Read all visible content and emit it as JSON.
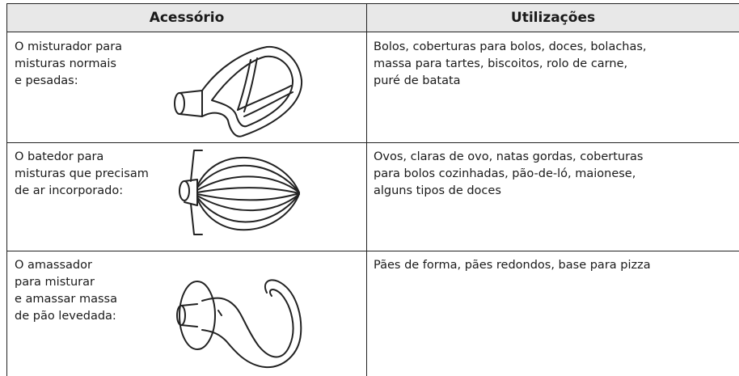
{
  "table": {
    "headers": [
      "Acessório",
      "Utilizações"
    ],
    "rows": [
      [
        [
          "O misturador para",
          "misturas normais",
          "e pesadas:"
        ],
        [
          "Bolos, coberturas para bolos, doces, bolachas,",
          "massa para tartes, biscoitos, rolo de carne,",
          "puré de batata"
        ]
      ],
      [
        [
          "O batedor para",
          "misturas que precisam",
          "de ar incorporado:"
        ],
        [
          "Ovos, claras de ovo, natas gordas, coberturas",
          "para bolos cozinhadas, pão-de-ló, maionese,",
          "alguns tipos de doces"
        ]
      ],
      [
        [
          "O amassador",
          "para misturar",
          "e amassar massa",
          "de pão levedada:"
        ],
        [
          "Pães de forma, pães redondos, base para pizza"
        ]
      ]
    ]
  }
}
